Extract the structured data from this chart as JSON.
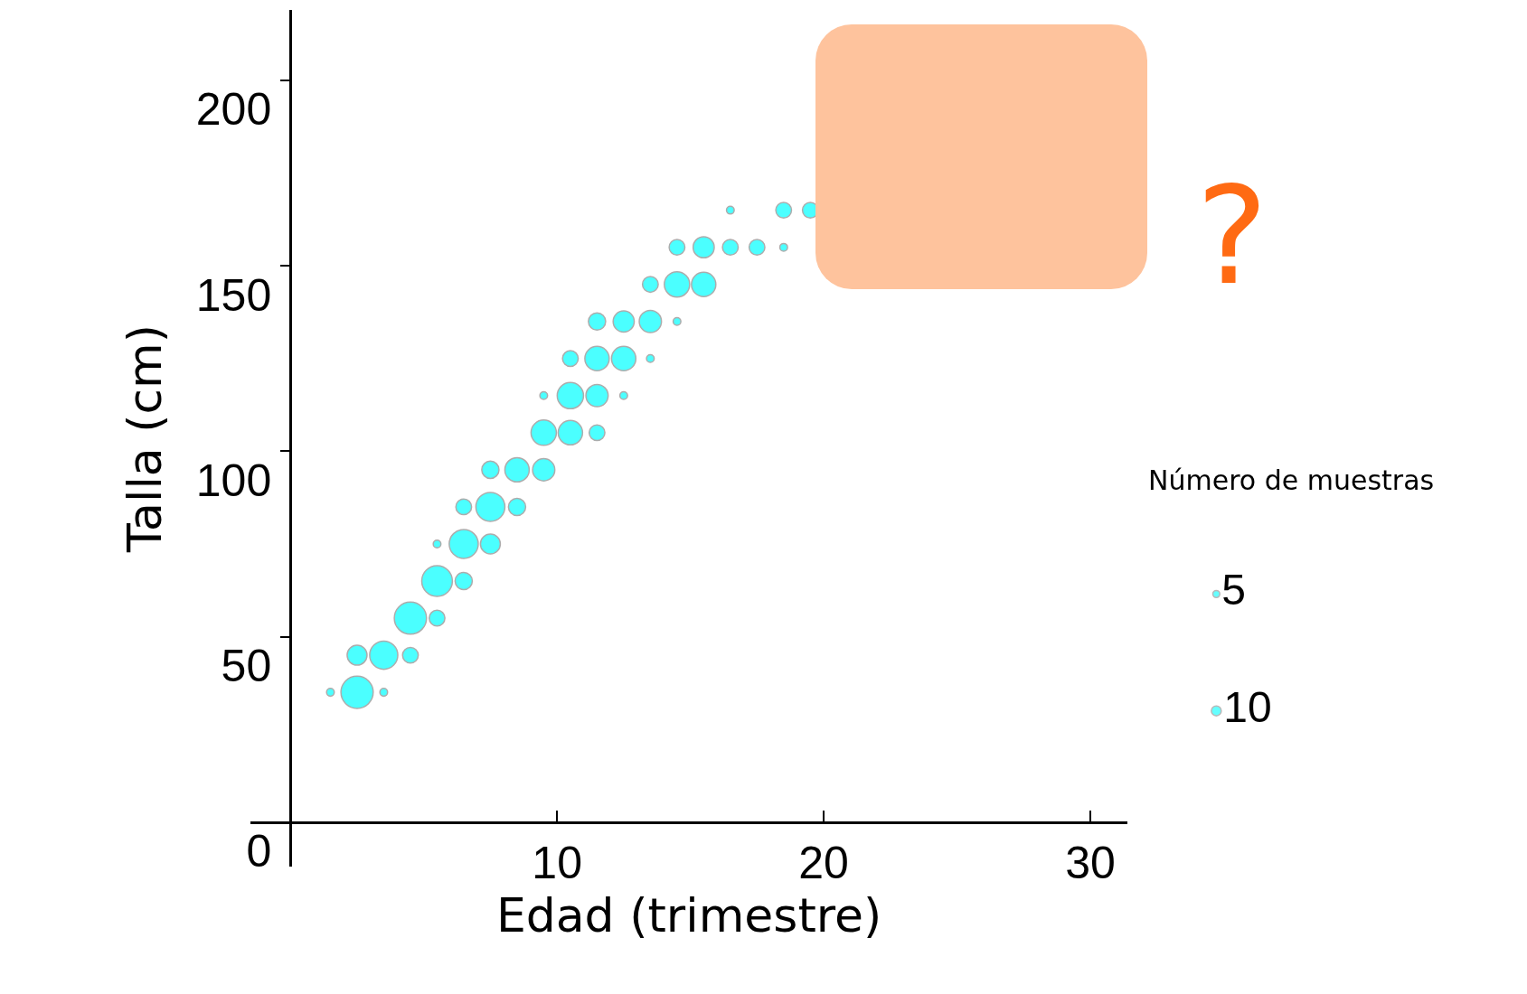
{
  "chart_data": {
    "type": "bubble",
    "xlabel": "Edad (trimestre)",
    "ylabel": "Talla (cm)",
    "legend_title": "Número de muestras",
    "annotations": [
      "?"
    ],
    "x": [
      1.5,
      2.5,
      3.5,
      2.5,
      3.5,
      4.5,
      4.5,
      5.5,
      5.5,
      6.5,
      5.5,
      6.5,
      7.5,
      6.5,
      7.5,
      8.5,
      7.5,
      8.5,
      9.5,
      9.5,
      10.5,
      11.5,
      9.5,
      10.5,
      11.5,
      12.5,
      10.5,
      11.5,
      12.5,
      13.5,
      11.5,
      12.5,
      13.5,
      14.5,
      13.5,
      14.5,
      15.5,
      14.5,
      15.5,
      16.5,
      17.5,
      18.5,
      16.5,
      18.5,
      19.5
    ],
    "values": [
      35,
      35,
      35,
      45,
      45,
      45,
      55,
      55,
      65,
      65,
      75,
      75,
      75,
      85,
      85,
      85,
      95,
      95,
      95,
      105,
      105,
      105,
      115,
      115,
      115,
      115,
      125,
      125,
      125,
      125,
      135,
      135,
      135,
      135,
      145,
      145,
      145,
      155,
      155,
      155,
      155,
      155,
      165,
      165,
      165
    ],
    "sizes": [
      6,
      105,
      6,
      40,
      80,
      25,
      105,
      25,
      95,
      30,
      6,
      85,
      40,
      25,
      85,
      30,
      30,
      60,
      50,
      65,
      60,
      25,
      6,
      70,
      50,
      6,
      25,
      60,
      60,
      6,
      30,
      45,
      50,
      6,
      25,
      65,
      60,
      25,
      45,
      25,
      25,
      6,
      6,
      25,
      25
    ],
    "size_legend": [
      5,
      10
    ],
    "color": "#00ffff",
    "xlim": [
      -1.5,
      31.4
    ],
    "ylim": [
      -12,
      219
    ],
    "xticks": [
      10,
      20,
      30
    ],
    "yticks": [
      {
        "value": 0,
        "label": "0"
      },
      50,
      100,
      150,
      200
    ],
    "grid": false
  }
}
